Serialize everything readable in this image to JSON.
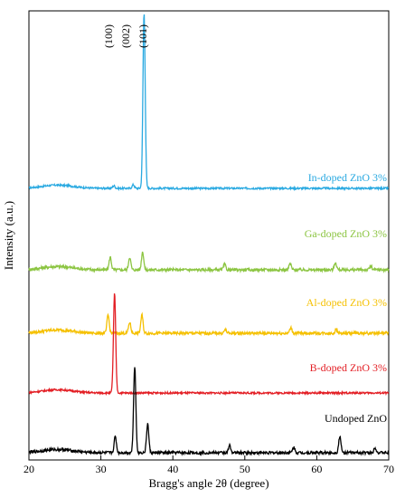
{
  "chart_data": {
    "type": "line",
    "title": "",
    "xlabel": "Bragg's angle 2θ (degree)",
    "ylabel": "Intensity (a.u.)",
    "xlim": [
      20,
      70
    ],
    "xticks": [
      20,
      30,
      40,
      50,
      60,
      70
    ],
    "y_ticks_shown": false,
    "grid": false,
    "legend": "none — each curve labeled with inline text",
    "peak_labels": [
      "(100)",
      "(002)",
      "(101)"
    ],
    "series": [
      {
        "name": "In-doped ZnO 3%",
        "color": "#29A9E1",
        "offset": 4,
        "baseline_noise": 0.05,
        "peaks": [
          {
            "x": 31.8,
            "h": 0.15
          },
          {
            "x": 34.5,
            "h": 0.2
          },
          {
            "x": 36.0,
            "h": 9.7
          }
        ]
      },
      {
        "name": "Ga-doped ZnO 3%",
        "color": "#8CC542",
        "offset": 3,
        "baseline_noise": 0.08,
        "peaks": [
          {
            "x": 31.3,
            "h": 0.7
          },
          {
            "x": 34.0,
            "h": 0.7
          },
          {
            "x": 35.8,
            "h": 1.0
          },
          {
            "x": 47.2,
            "h": 0.3
          },
          {
            "x": 56.3,
            "h": 0.35
          },
          {
            "x": 62.6,
            "h": 0.4
          },
          {
            "x": 67.5,
            "h": 0.2
          }
        ]
      },
      {
        "name": "Al-doped ZnO 3%",
        "color": "#F5C000",
        "offset": 2,
        "baseline_noise": 0.08,
        "peaks": [
          {
            "x": 31.0,
            "h": 1.0
          },
          {
            "x": 34.0,
            "h": 0.6
          },
          {
            "x": 35.7,
            "h": 1.0
          },
          {
            "x": 47.3,
            "h": 0.2
          },
          {
            "x": 56.4,
            "h": 0.3
          },
          {
            "x": 62.7,
            "h": 0.2
          }
        ]
      },
      {
        "name": "B-doped ZnO 3%",
        "color": "#E31E24",
        "offset": 1,
        "baseline_noise": 0.05,
        "peaks": [
          {
            "x": 31.9,
            "h": 5.5
          }
        ]
      },
      {
        "name": "Undoped ZnO",
        "color": "#000000",
        "offset": 0,
        "baseline_noise": 0.08,
        "peaks": [
          {
            "x": 32.0,
            "h": 0.9
          },
          {
            "x": 34.7,
            "h": 4.8
          },
          {
            "x": 36.5,
            "h": 1.6
          },
          {
            "x": 47.9,
            "h": 0.4
          },
          {
            "x": 56.8,
            "h": 0.3
          },
          {
            "x": 63.2,
            "h": 0.9
          },
          {
            "x": 68.1,
            "h": 0.3
          }
        ]
      }
    ]
  }
}
